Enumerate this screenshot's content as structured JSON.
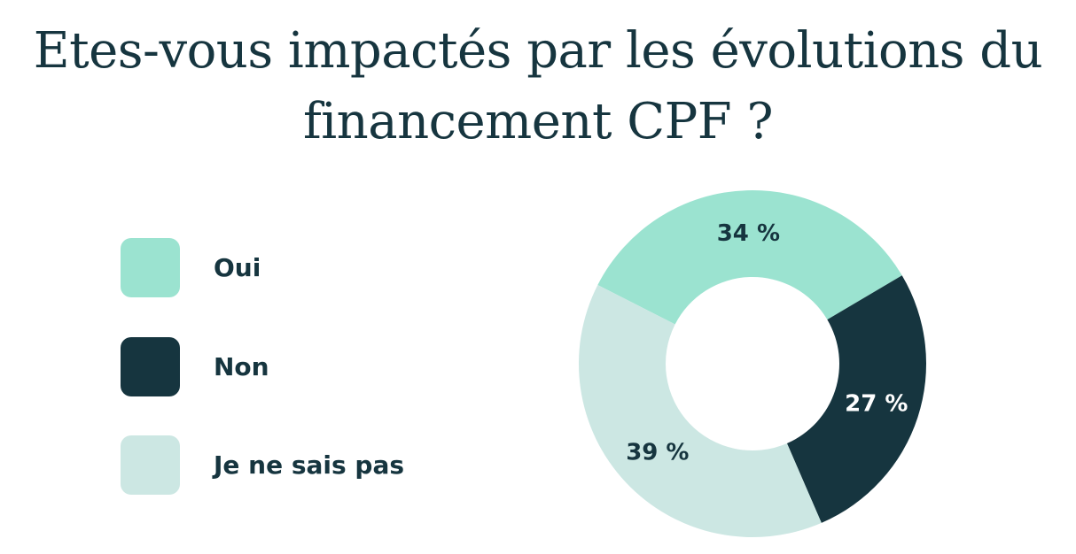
{
  "chart_data": {
    "type": "pie",
    "title": "Etes-vous impactés par les évolutions du financement CPF ?",
    "categories": [
      "Oui",
      "Non",
      "Je ne sais pas"
    ],
    "values": [
      34,
      27,
      39
    ],
    "value_labels": [
      "34 %",
      "27 %",
      "39 %"
    ],
    "colors": [
      "#9be3d0",
      "#16353f",
      "#cce7e3"
    ],
    "label_colors": [
      "#16353f",
      "#ffffff",
      "#16353f"
    ],
    "donut": true,
    "legend": "left"
  }
}
